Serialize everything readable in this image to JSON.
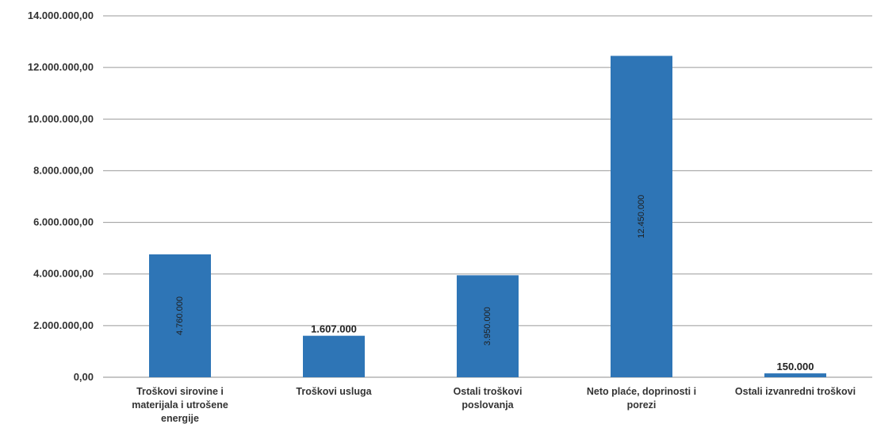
{
  "chart_data": {
    "type": "bar",
    "title": "",
    "xlabel": "",
    "ylabel": "",
    "ylim": [
      0,
      14000000
    ],
    "yticks": [
      0,
      2000000,
      4000000,
      6000000,
      8000000,
      10000000,
      12000000,
      14000000
    ],
    "ytick_labels": [
      "0,00",
      "2.000.000,00",
      "4.000.000,00",
      "6.000.000,00",
      "8.000.000,00",
      "10.000.000,00",
      "12.000.000,00",
      "14.000.000,00"
    ],
    "grid": true,
    "bar_color": "#2e75b6",
    "categories": [
      [
        "Troškovi sirovine i",
        "materijala i utrošene",
        "energije"
      ],
      [
        "Troškovi usluga"
      ],
      [
        "Ostali troškovi",
        "poslovanja"
      ],
      [
        "Neto plaće, doprinosti i",
        "porezi"
      ],
      [
        "Ostali izvanredni troškovi"
      ]
    ],
    "values": [
      4760000,
      1607000,
      3950000,
      12450000,
      150000
    ],
    "data_labels": [
      "4.760.000",
      "1.607.000",
      "3.950.000",
      "12.450.000",
      "150.000"
    ]
  }
}
